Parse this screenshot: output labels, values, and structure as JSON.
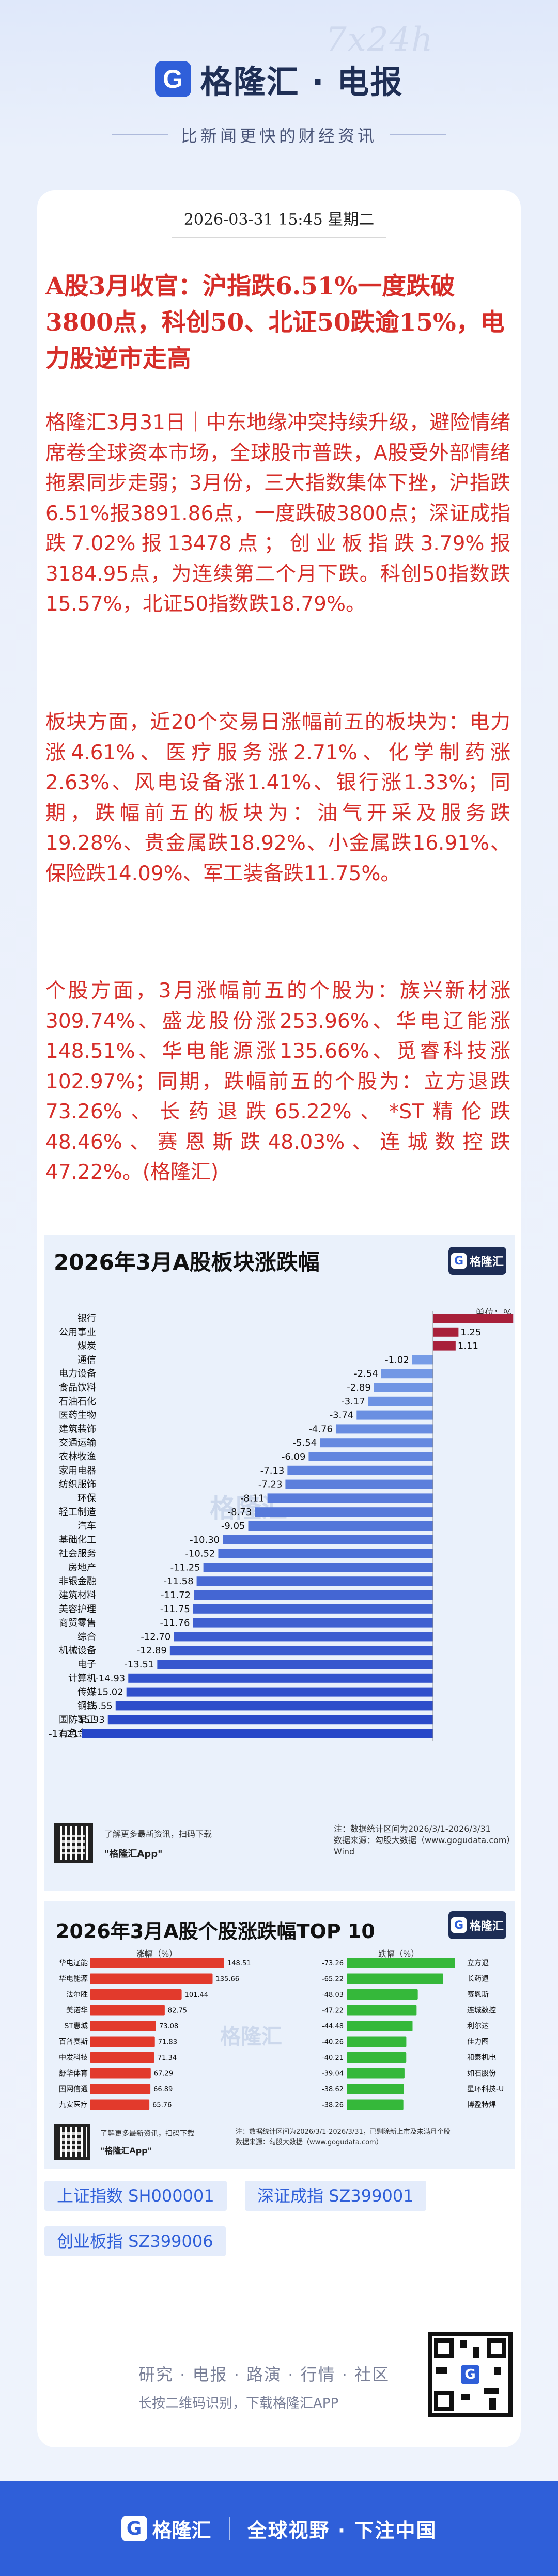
{
  "header": {
    "watermark": "7x24h",
    "logo_letter": "G",
    "brand": "格隆汇 · 电报",
    "slogan": "比新闻更快的财经资讯"
  },
  "article": {
    "date": "2026-03-31 15:45 星期二",
    "headline": "A股3月收官：沪指跌6.51%一度跌破3800点，科创50、北证50跌逾15%，电力股逆市走高",
    "paragraphs": [
      "格隆汇3月31日｜中东地缘冲突持续升级，避险情绪席卷全球资本市场，全球股市普跌，A股受外部情绪拖累同步走弱；3月份，三大指数集体下挫，沪指跌6.51%报3891.86点，一度跌破3800点；深证成指跌7.02%报13478点；创业板指跌3.79%报3184.95点，为连续第二个月下跌。科创50指数跌15.57%，北证50指数跌18.79%。",
      "板块方面，近20个交易日涨幅前五的板块为：电力涨4.61%、医疗服务涨2.71%、化学制药涨2.63%、风电设备涨1.41%、银行涨1.33%；同期，跌幅前五的板块为：油气开采及服务跌19.28%、贵金属跌18.92%、小金属跌16.91%、保险跌14.09%、军工装备跌11.75%。",
      "个股方面，3月涨幅前五的个股为：族兴新材涨309.74%、盛龙股份涨253.96%、华电辽能涨148.51%、华电能源涨135.66%、觅睿科技涨102.97%；同期，跌幅前五的个股为：立方退跌73.26%、长药退跌65.22%、*ST精伦跌48.46%、赛恩斯跌48.03%、连城数控跌47.22%。(格隆汇)"
    ]
  },
  "chart_data": [
    {
      "type": "bar",
      "orientation": "horizontal",
      "title": "2026年3月A股板块涨跌幅",
      "unit_label": "单位：%",
      "categories": [
        "银行",
        "公用事业",
        "煤炭",
        "通信",
        "电力设备",
        "食品饮料",
        "石油石化",
        "医药生物",
        "建筑装饰",
        "交通运输",
        "农林牧渔",
        "家用电器",
        "纺织服饰",
        "环保",
        "轻工制造",
        "汽车",
        "基础化工",
        "社会服务",
        "房地产",
        "非银金融",
        "建筑材料",
        "美容护理",
        "商贸零售",
        "综合",
        "机械设备",
        "电子",
        "计算机",
        "传媒",
        "钢铁",
        "国防军工",
        "有色金属"
      ],
      "values": [
        3.93,
        1.25,
        1.11,
        -1.02,
        -2.54,
        -2.89,
        -3.17,
        -3.74,
        -4.76,
        -5.54,
        -6.09,
        -7.13,
        -7.23,
        -8.11,
        -8.73,
        -9.05,
        -10.3,
        -10.52,
        -11.25,
        -11.58,
        -11.72,
        -11.75,
        -11.76,
        -12.7,
        -12.89,
        -13.51,
        -14.93,
        -15.02,
        -15.55,
        -15.93,
        -17.21
      ],
      "xlim": [
        -18,
        4
      ],
      "grid": false,
      "watermark_text": "格隆汇",
      "footer_source": "注：数据统计区间为2026/3/1-2026/3/31\n数据来源：勾股大数据（www.gogudata.com）Wind",
      "qr_caption": "了解更多最新资讯，扫码下载",
      "app_name": "\"格隆汇App\""
    },
    {
      "type": "bar",
      "orientation": "horizontal-diverging",
      "title": "2026年3月A股个股涨跌幅TOP 10",
      "gainers_label": "涨幅（%）",
      "losers_label": "跌幅（%）",
      "gainers": {
        "names": [
          "华电辽能",
          "华电能源",
          "法尔胜",
          "美诺华",
          "ST惠城",
          "百普赛斯",
          "中发科技",
          "舒华体育",
          "国网信通",
          "九安医疗"
        ],
        "values": [
          148.51,
          135.66,
          101.44,
          82.75,
          73.08,
          71.83,
          71.34,
          67.29,
          66.89,
          65.76
        ]
      },
      "losers": {
        "names": [
          "立方退",
          "长药退",
          "赛恩斯",
          "连城数控",
          "利尔达",
          "佳力图",
          "和泰机电",
          "如石股份",
          "星环科技-U",
          "博盈特焊"
        ],
        "values": [
          -73.26,
          -65.22,
          -48.03,
          -47.22,
          -44.48,
          -40.26,
          -40.21,
          -39.04,
          -38.62,
          -38.26
        ]
      },
      "footer_note": "注：数据统计区间为2026/3/1-2026/3/31，已剔除新上市及未满月个股\n数据来源：勾股大数据（www.gogudata.com）",
      "qr_caption": "了解更多最新资讯，扫码下载",
      "app_name": "\"格隆汇App\""
    }
  ],
  "stock_tags": [
    "上证指数 SH000001",
    "深证成指 SZ399001",
    "创业板指 SZ399006"
  ],
  "footer": {
    "links": "研究 · 电报 · 路演 · 行情 · 社区",
    "tip": "长按二维码识别，下载格隆汇APP"
  },
  "bottom_bar": {
    "brand": "格隆汇",
    "slogan": "全球视野 · 下注中国"
  },
  "colors": {
    "primary_blue": "#2f5fd9",
    "headline_red": "#d62e29",
    "positive_bar": "#a8203a",
    "negative_bar_start": "#2747c8",
    "negative_bar_end": "#7fa5ea",
    "gainers_bar": "#e23a2c",
    "losers_bar": "#35b83a"
  }
}
